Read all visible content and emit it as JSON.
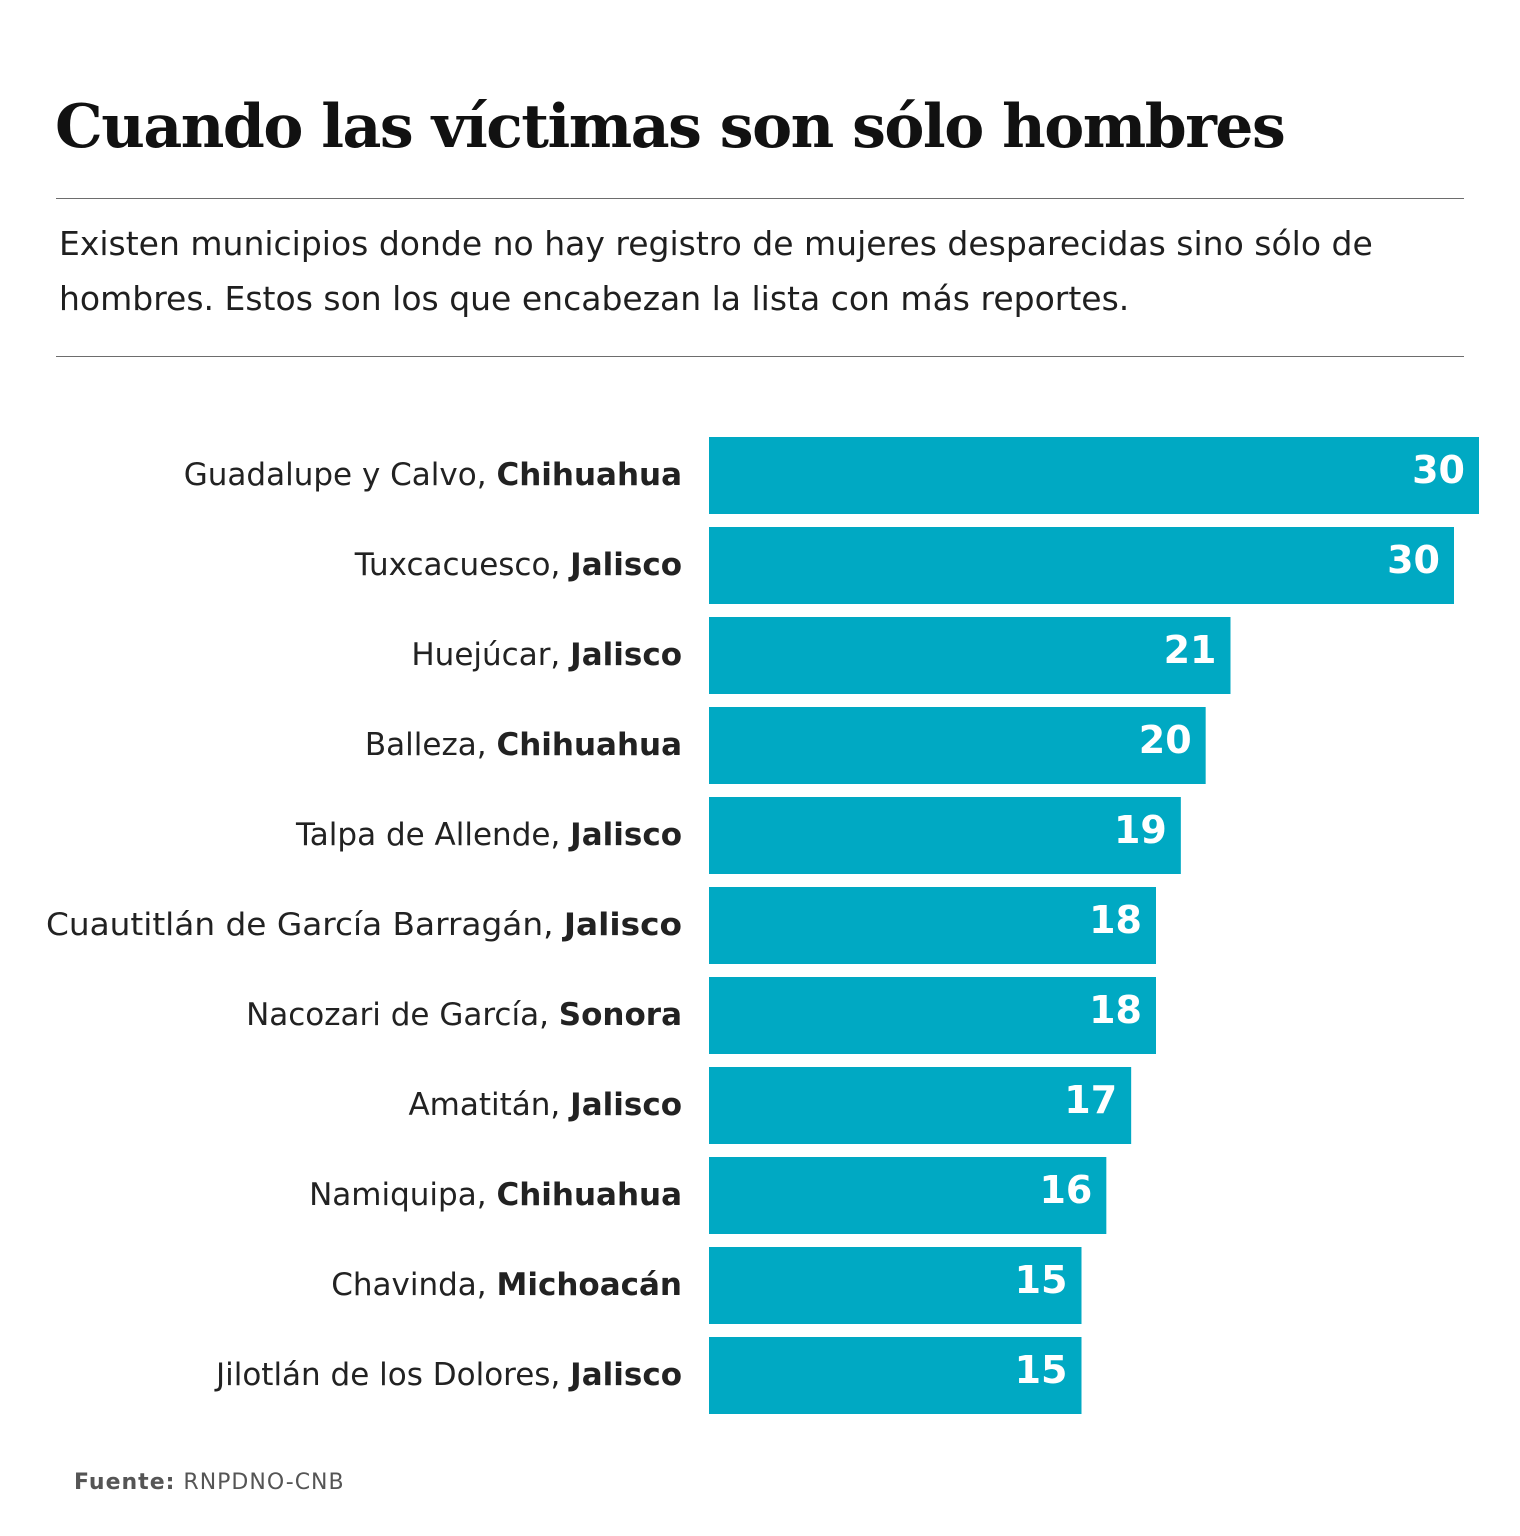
{
  "header": {
    "title": "Cuando las víctimas son sólo hombres",
    "subtitle": "Existen municipios donde no hay registro de mujeres desparecidas sino sólo de hombres. Estos son los que encabezan la lista con más reportes."
  },
  "footer": {
    "source_label": "Fuente:",
    "source_value": "RNPDNO-CNB"
  },
  "colors": {
    "bar": "#00a9c3",
    "value_text": "#ffffff",
    "label_text": "#222222"
  },
  "chart_data": {
    "type": "bar",
    "orientation": "horizontal",
    "title": "Cuando las víctimas son sólo hombres",
    "xlabel": "",
    "ylabel": "",
    "categories": [
      {
        "municipio": "Guadalupe y Calvo,",
        "estado": "Chihuahua"
      },
      {
        "municipio": "Tuxcacuesco,",
        "estado": "Jalisco"
      },
      {
        "municipio": "Huejúcar,",
        "estado": "Jalisco"
      },
      {
        "municipio": "Balleza,",
        "estado": "Chihuahua"
      },
      {
        "municipio": "Talpa de Allende,",
        "estado": "Jalisco"
      },
      {
        "municipio": "Cuautitlán de García Barragán,",
        "estado": "Jalisco"
      },
      {
        "municipio": "Nacozari de García,",
        "estado": "Sonora"
      },
      {
        "municipio": "Amatitán,",
        "estado": "Jalisco"
      },
      {
        "municipio": "Namiquipa,",
        "estado": "Chihuahua"
      },
      {
        "municipio": "Chavinda,",
        "estado": "Michoacán"
      },
      {
        "municipio": "Jilotlán de los Dolores,",
        "estado": "Jalisco"
      }
    ],
    "values": [
      30,
      30,
      21,
      20,
      19,
      18,
      18,
      17,
      16,
      15,
      15
    ],
    "xlim": [
      0,
      30
    ]
  }
}
